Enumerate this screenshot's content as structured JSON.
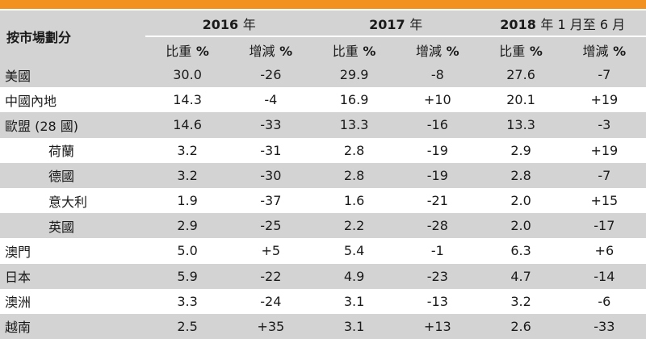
{
  "header": {
    "market_label": "按市場劃分",
    "periods": [
      {
        "num": "2016",
        "suffix": "年"
      },
      {
        "num": "2017",
        "suffix": "年"
      },
      {
        "num": "2018",
        "suffix": "年 1 月至 6 月"
      }
    ],
    "sub": {
      "share_cjk": "比重",
      "share_sym": "%",
      "change_cjk": "增減",
      "change_sym": "%"
    }
  },
  "rows": [
    {
      "market": "美國",
      "indent": false,
      "v": [
        "30.0",
        "-26",
        "29.9",
        "-8",
        "27.6",
        "-7"
      ]
    },
    {
      "market": "中國內地",
      "indent": false,
      "v": [
        "14.3",
        "-4",
        "16.9",
        "+10",
        "20.1",
        "+19"
      ]
    },
    {
      "market": "歐盟 (28 國)",
      "indent": false,
      "v": [
        "14.6",
        "-33",
        "13.3",
        "-16",
        "13.3",
        "-3"
      ]
    },
    {
      "market": "荷蘭",
      "indent": true,
      "v": [
        "3.2",
        "-31",
        "2.8",
        "-19",
        "2.9",
        "+19"
      ]
    },
    {
      "market": "德國",
      "indent": true,
      "v": [
        "3.2",
        "-30",
        "2.8",
        "-19",
        "2.8",
        "-7"
      ]
    },
    {
      "market": "意大利",
      "indent": true,
      "v": [
        "1.9",
        "-37",
        "1.6",
        "-21",
        "2.0",
        "+15"
      ]
    },
    {
      "market": "英國",
      "indent": true,
      "v": [
        "2.9",
        "-25",
        "2.2",
        "-28",
        "2.0",
        "-17"
      ]
    },
    {
      "market": "澳門",
      "indent": false,
      "v": [
        "5.0",
        "+5",
        "5.4",
        "-1",
        "6.3",
        "+6"
      ]
    },
    {
      "market": "日本",
      "indent": false,
      "v": [
        "5.9",
        "-22",
        "4.9",
        "-23",
        "4.7",
        "-14"
      ]
    },
    {
      "market": "澳洲",
      "indent": false,
      "v": [
        "3.3",
        "-24",
        "3.1",
        "-13",
        "3.2",
        "-6"
      ]
    },
    {
      "market": "越南",
      "indent": false,
      "v": [
        "2.5",
        "+35",
        "3.1",
        "+13",
        "2.6",
        "-33"
      ]
    }
  ],
  "colors": {
    "accent_bar": "#f39120",
    "shade": "#d3d3d3"
  }
}
